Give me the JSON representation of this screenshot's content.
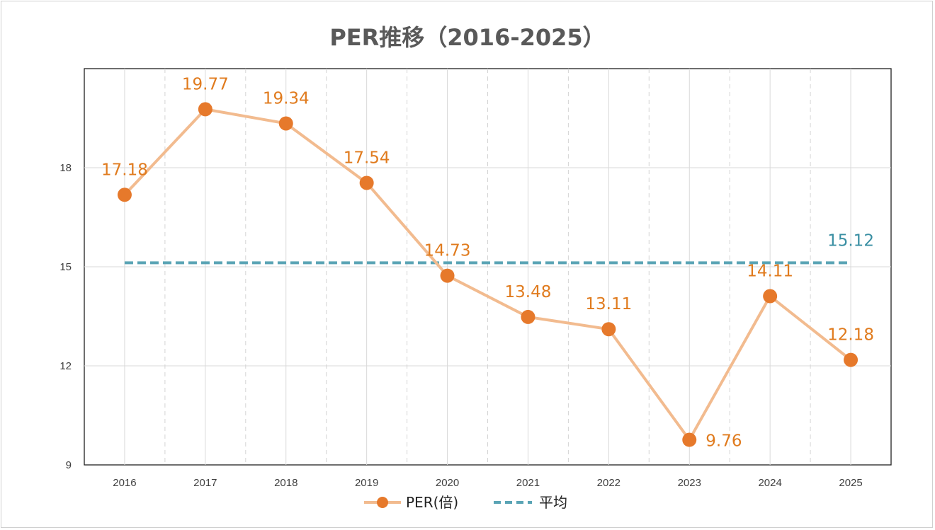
{
  "chart_data": {
    "type": "line",
    "title": "PER推移（2016-2025）",
    "categories": [
      "2016",
      "2017",
      "2018",
      "2019",
      "2020",
      "2021",
      "2022",
      "2023",
      "2024",
      "2025"
    ],
    "series": [
      {
        "name": "PER(倍)",
        "values": [
          17.18,
          19.77,
          19.34,
          17.54,
          14.73,
          13.48,
          13.11,
          9.76,
          14.11,
          12.18
        ],
        "labels": [
          "17.18",
          "19.77",
          "19.34",
          "17.54",
          "14.73",
          "13.48",
          "13.11",
          "9.76",
          "14.11",
          "12.18"
        ],
        "color": "#e6792b",
        "line_color": "#f2bb8f"
      },
      {
        "name": "平均",
        "value": 15.12,
        "label": "15.12",
        "style": "dashed",
        "color": "#5aa4b5"
      }
    ],
    "y_ticks": [
      {
        "value": 9,
        "label": "9"
      },
      {
        "value": 12,
        "label": "12"
      },
      {
        "value": 15,
        "label": "15"
      },
      {
        "value": 18,
        "label": "18"
      }
    ],
    "ylim": [
      9,
      21
    ],
    "xlabel": "",
    "ylabel": "",
    "grid": true,
    "legend_position": "bottom"
  }
}
